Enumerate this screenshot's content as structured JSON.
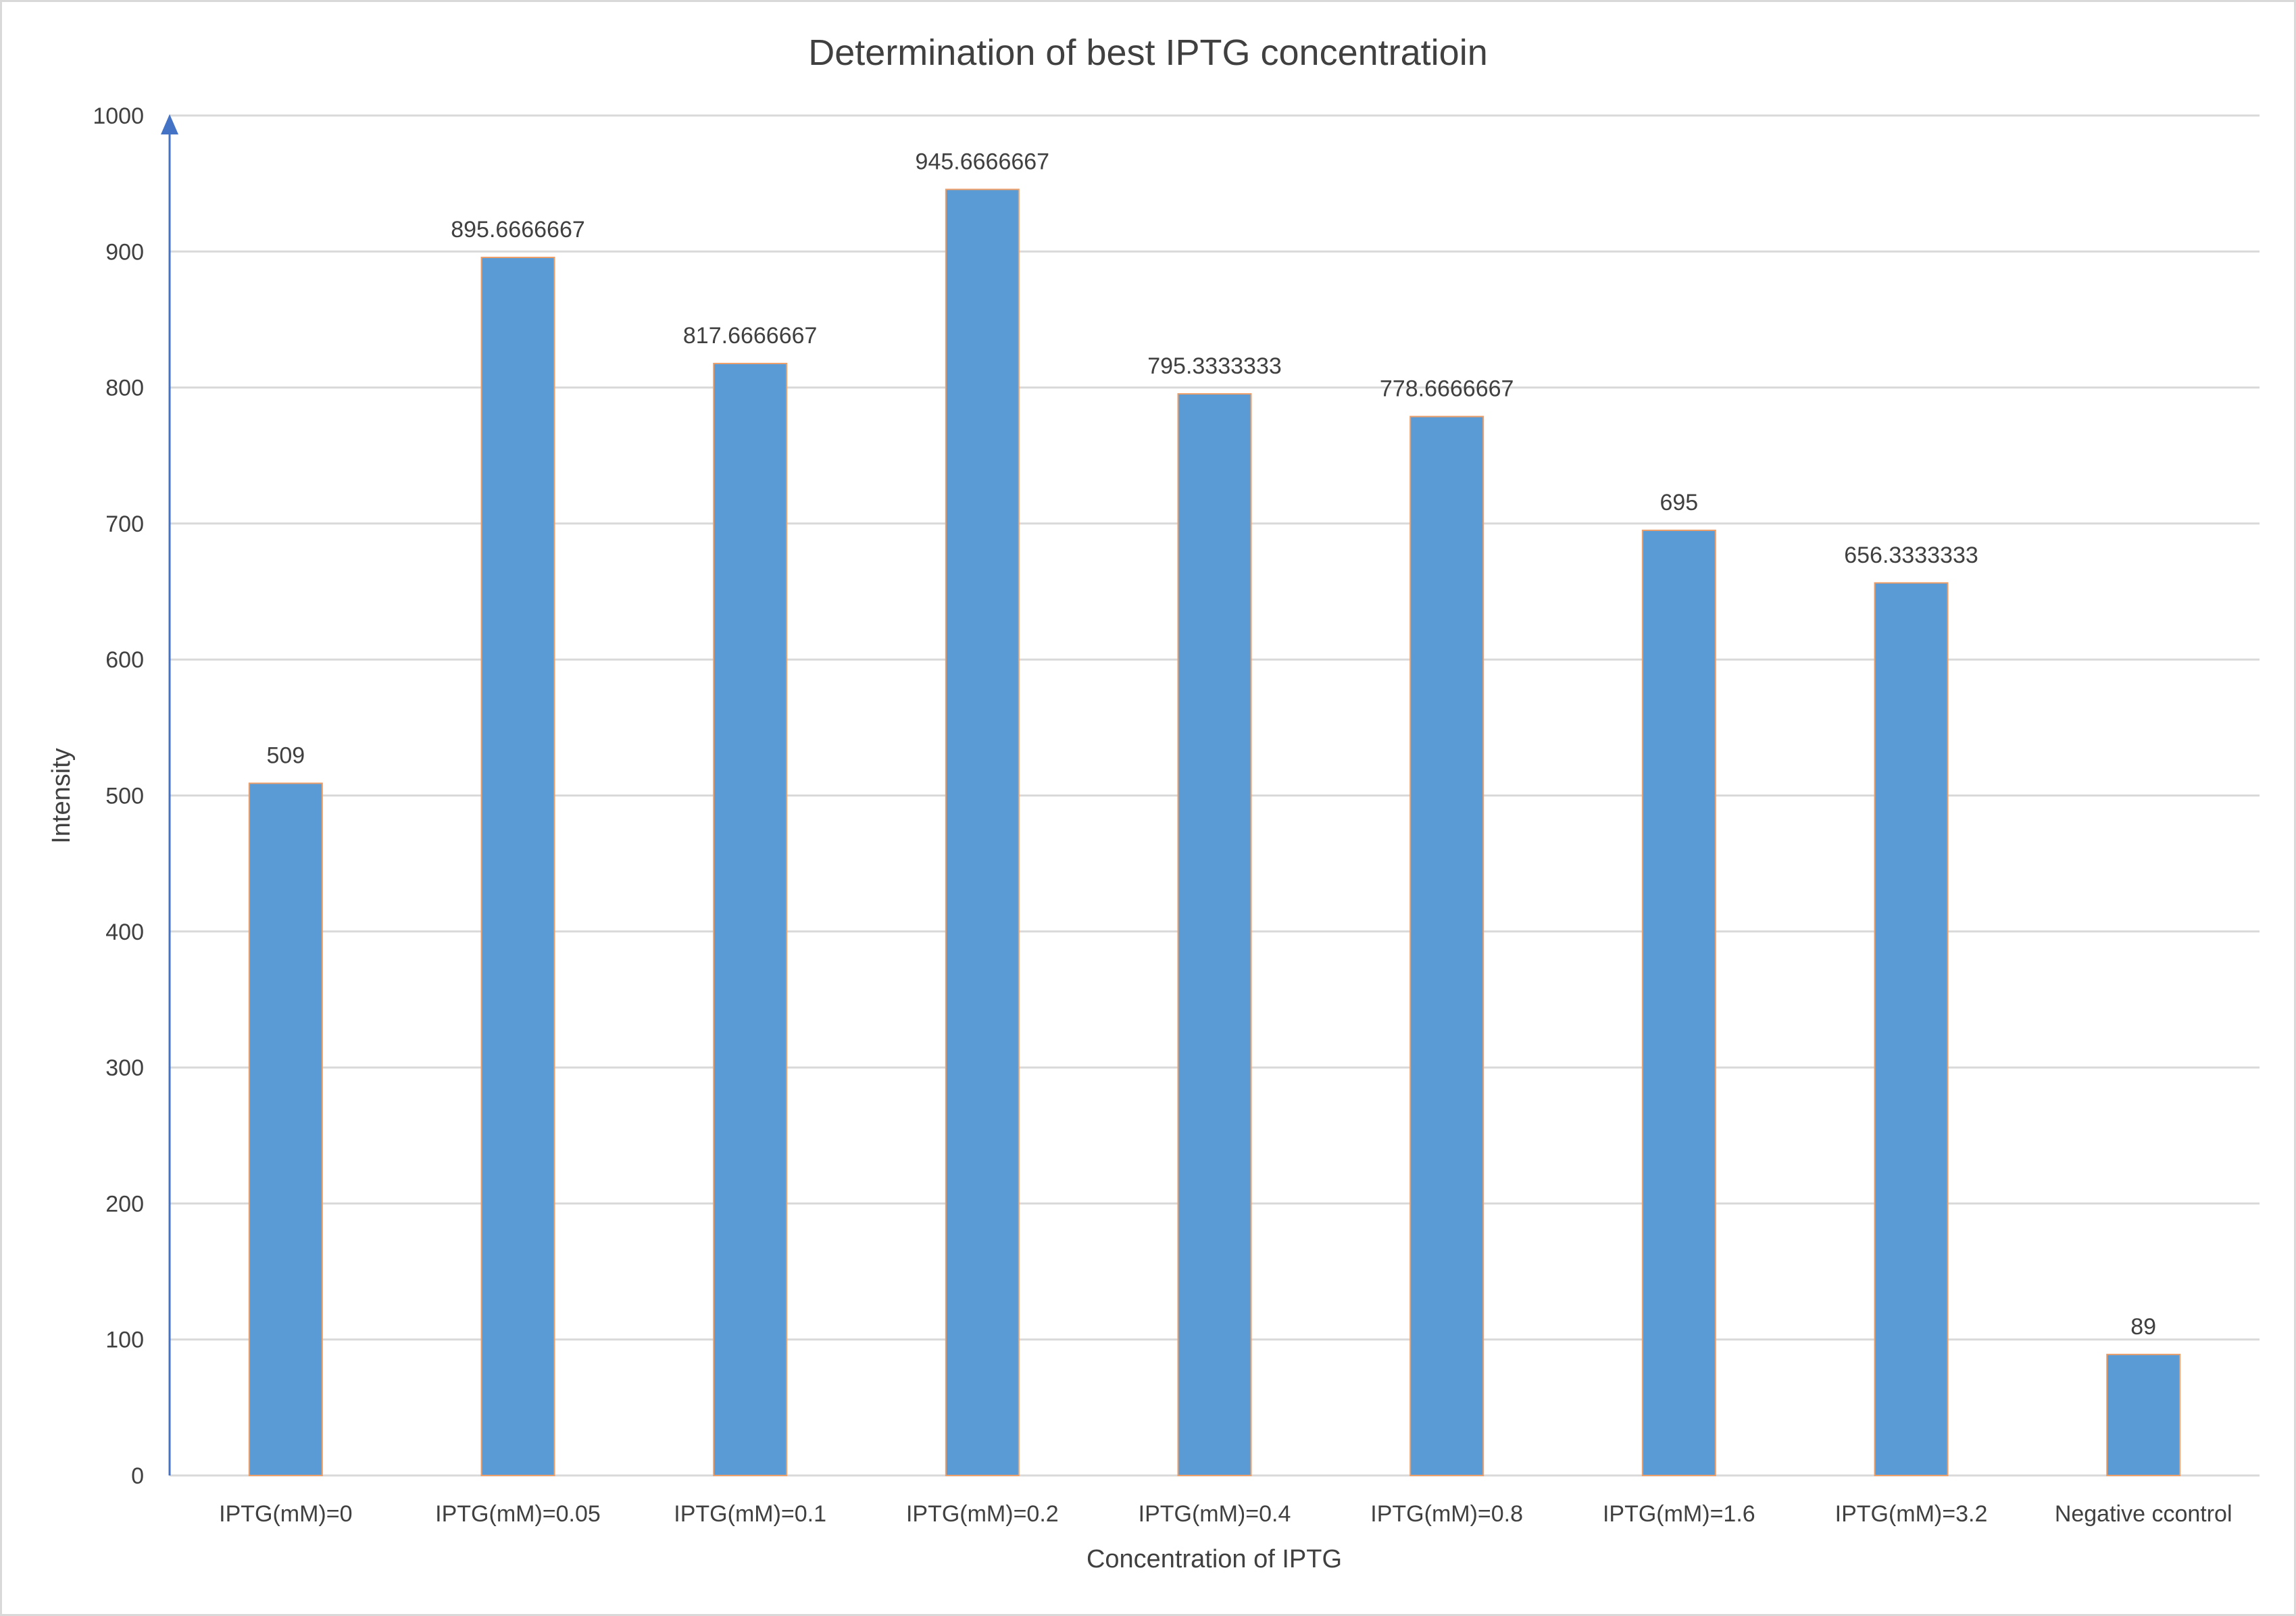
{
  "chart_data": {
    "type": "bar",
    "title": "Determination of best IPTG concentratioin",
    "xlabel": "Concentration of IPTG",
    "ylabel": "Intensity",
    "categories": [
      "IPTG(mM)=0",
      "IPTG(mM)=0.05",
      "IPTG(mM)=0.1",
      "IPTG(mM)=0.2",
      "IPTG(mM)=0.4",
      "IPTG(mM)=0.8",
      "IPTG(mM)=1.6",
      "IPTG(mM)=3.2",
      "Negative ccontrol"
    ],
    "values": [
      509,
      895.6666667,
      817.6666667,
      945.6666667,
      795.3333333,
      778.6666667,
      695,
      656.3333333,
      89
    ],
    "data_labels": [
      "509",
      "895.6666667",
      "817.6666667",
      "945.6666667",
      "795.3333333",
      "778.6666667",
      "695",
      "656.3333333",
      "89"
    ],
    "ylim": [
      0,
      1000
    ],
    "yticks": [
      "0",
      "100",
      "200",
      "300",
      "400",
      "500",
      "600",
      "700",
      "800",
      "900",
      "1000"
    ],
    "grid": true,
    "legend": "none",
    "colors": {
      "bar_fill": "#5b9bd5",
      "bar_edge": "#ed9f6a",
      "axis": "#4472c4",
      "grid": "#d9d9d9",
      "text": "#404040"
    }
  }
}
